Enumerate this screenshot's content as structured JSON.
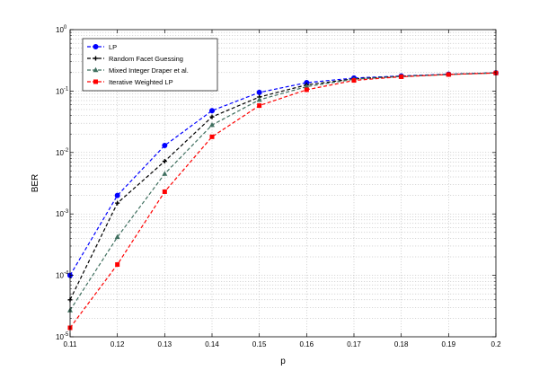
{
  "chart_data": {
    "type": "line",
    "xlabel": "p",
    "ylabel": "BER",
    "xlim": [
      0.11,
      0.2
    ],
    "ylim_exponent": [
      -5,
      0
    ],
    "y_scale": "log",
    "grid": true,
    "legend_position": "top-left",
    "x_ticks": [
      "0.11",
      "0.12",
      "0.13",
      "0.14",
      "0.15",
      "0.16",
      "0.17",
      "0.18",
      "0.19",
      "0.2"
    ],
    "y_ticks": [
      {
        "base": "10",
        "exp": "-5",
        "value": 1e-05
      },
      {
        "base": "10",
        "exp": "-4",
        "value": 0.0001
      },
      {
        "base": "10",
        "exp": "-3",
        "value": 0.001
      },
      {
        "base": "10",
        "exp": "-2",
        "value": 0.01
      },
      {
        "base": "10",
        "exp": "-1",
        "value": 0.1
      },
      {
        "base": "10",
        "exp": "0",
        "value": 1
      }
    ],
    "x": [
      0.11,
      0.12,
      0.13,
      0.14,
      0.15,
      0.16,
      0.17,
      0.18,
      0.19,
      0.2
    ],
    "series": [
      {
        "name": "LP",
        "color": "#0000ff",
        "marker": "circle",
        "values": [
          0.0001,
          0.002,
          0.013,
          0.048,
          0.095,
          0.137,
          0.163,
          0.176,
          0.188,
          0.198
        ]
      },
      {
        "name": "Random Facet Guessing",
        "color": "#000000",
        "marker": "cross",
        "values": [
          4e-05,
          0.0015,
          0.0072,
          0.038,
          0.08,
          0.126,
          0.158,
          0.174,
          0.187,
          0.198
        ]
      },
      {
        "name": "Mixed Integer Draper et al.",
        "color": "#3f6f5f",
        "marker": "triangle",
        "values": [
          2.7e-05,
          0.00042,
          0.0045,
          0.028,
          0.072,
          0.118,
          0.156,
          0.173,
          0.186,
          0.197
        ]
      },
      {
        "name": "Iterative Weighted LP",
        "color": "#ff0000",
        "marker": "square",
        "values": [
          1.4e-05,
          0.00015,
          0.0023,
          0.018,
          0.058,
          0.105,
          0.149,
          0.171,
          0.186,
          0.197
        ]
      }
    ]
  }
}
